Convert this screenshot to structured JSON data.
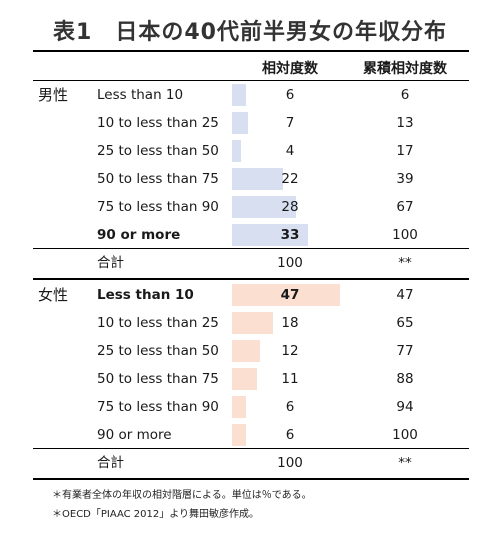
{
  "title": "表1　日本の40代前半男女の年収分布",
  "headers": {
    "relative": "相対度数",
    "cumulative": "累積相対度数"
  },
  "colors": {
    "male_bar": "#d7dff0",
    "female_bar": "#fbe0d2"
  },
  "scale_max": 47,
  "male": {
    "group_label": "男性",
    "rows": [
      {
        "label": "Less than 10",
        "value": "6",
        "cum": "6",
        "bold": false
      },
      {
        "label": "10 to less than 25",
        "value": "7",
        "cum": "13",
        "bold": false
      },
      {
        "label": "25 to less than 50",
        "value": "4",
        "cum": "17",
        "bold": false
      },
      {
        "label": "50 to less than 75",
        "value": "22",
        "cum": "39",
        "bold": false
      },
      {
        "label": "75 to less than 90",
        "value": "28",
        "cum": "67",
        "bold": false
      },
      {
        "label": "90 or more",
        "value": "33",
        "cum": "100",
        "bold": true
      }
    ],
    "total": {
      "label": "合計",
      "value": "100",
      "cum": "**"
    }
  },
  "female": {
    "group_label": "女性",
    "rows": [
      {
        "label": "Less than 10",
        "value": "47",
        "cum": "47",
        "bold": true
      },
      {
        "label": "10 to less than 25",
        "value": "18",
        "cum": "65",
        "bold": false
      },
      {
        "label": "25 to less than 50",
        "value": "12",
        "cum": "77",
        "bold": false
      },
      {
        "label": "50 to less than 75",
        "value": "11",
        "cum": "88",
        "bold": false
      },
      {
        "label": "75 to less than 90",
        "value": "6",
        "cum": "94",
        "bold": false
      },
      {
        "label": "90 or more",
        "value": "6",
        "cum": "100",
        "bold": false
      }
    ],
    "total": {
      "label": "合計",
      "value": "100",
      "cum": "**"
    }
  },
  "notes": [
    "＊有業者全体の年収の相対階層による。単位は％である。",
    "＊OECD「PIAAC 2012」より舞田敏彦作成。"
  ]
}
